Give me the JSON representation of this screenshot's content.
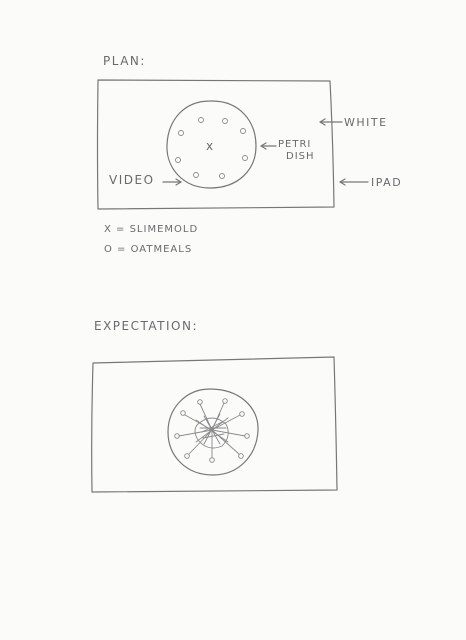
{
  "plan": {
    "heading": "PLAN:",
    "label_white": "WHITE",
    "label_petri": "PETRI",
    "label_dish": "DISH",
    "label_video": "VIDEO",
    "label_ipad": "IPAD",
    "legend_x": "X = SLIMEMOLD",
    "legend_o": "O = OATMEALS",
    "center_mark": "x"
  },
  "expectation": {
    "heading": "EXPECTATION:"
  }
}
